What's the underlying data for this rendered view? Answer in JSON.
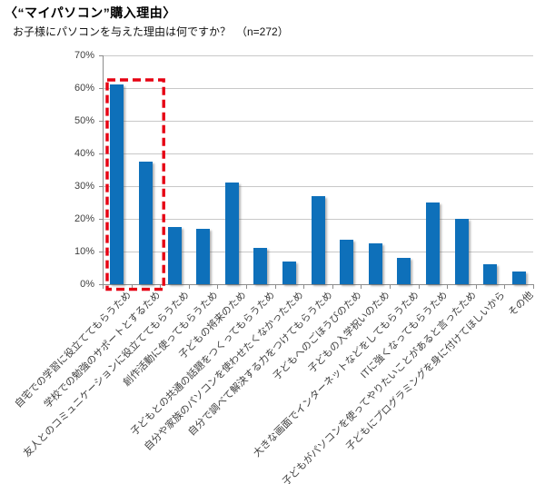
{
  "chart_data": {
    "type": "bar",
    "title": "〈“マイパソコン”購入理由〉",
    "subtitle": "お子様にパソコンを与えた理由は何ですか？　（n=272）",
    "sample_size": "n=272",
    "categories": [
      "自宅での学習に役立ててもらうため",
      "学校での勉強のサポートとするため",
      "友人とのコミュニケーションに役立ててもらうため",
      "創作活動に使ってもらうため",
      "子どもの将来のため",
      "子どもとの共通の話題をつくってもらうため",
      "自分や家族のパソコンを使わせたくなかったため",
      "自分で調べて解決する力をつけてもらうため",
      "子どもへのごほうびのため",
      "子どもの入学祝いのため",
      "大きな画面でインターネットなどをしてもらうため",
      "ITに強くなってもらうため",
      "子どもがパソコンを使ってやりたいことがあると言ったため",
      "子どもにプログラミングを身に付けてほしいから",
      "その他"
    ],
    "values": [
      61,
      37.5,
      17.5,
      17,
      31,
      11,
      7,
      27,
      13.5,
      12.5,
      8,
      25,
      20,
      6,
      4
    ],
    "unit": "%",
    "xlabel": "",
    "ylabel": "",
    "ylim": [
      0,
      70
    ],
    "yticks": [
      0,
      10,
      20,
      30,
      40,
      50,
      60,
      70
    ],
    "ytick_labels": [
      "0%",
      "10%",
      "20%",
      "30%",
      "40%",
      "50%",
      "60%",
      "70%"
    ],
    "grid": true,
    "legend": "none",
    "bar_color": "#0E70BA",
    "grid_color": "#C8C8C8",
    "axis_color": "#8C8C8C",
    "text_color": "#3F3F3F",
    "annotation": {
      "type": "highlight-box",
      "style": "dashed",
      "color": "#E60012",
      "from_index": 0,
      "to_index": 1,
      "categories_highlighted": [
        "自宅での学習に役立ててもらうため",
        "学校での勉強のサポートとするため"
      ]
    }
  }
}
